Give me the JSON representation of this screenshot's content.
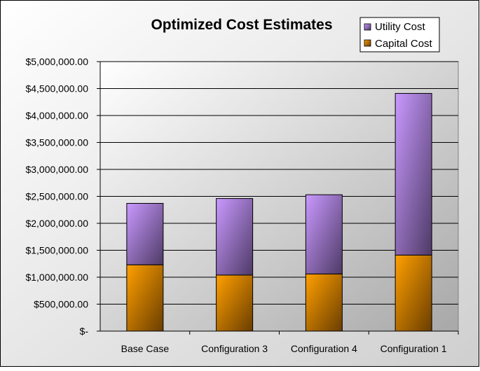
{
  "chart_data": {
    "type": "bar",
    "stacked": true,
    "title": "Optimized Cost Estimates",
    "categories": [
      "Base Case",
      "Configuration 3",
      "Configuration 4",
      "Configuration 1"
    ],
    "series": [
      {
        "name": "Capital Cost",
        "values": [
          1230000,
          1040000,
          1060000,
          1410000
        ],
        "color": "#f39a00"
      },
      {
        "name": "Utility Cost",
        "values": [
          1140000,
          1420000,
          1470000,
          3000000
        ],
        "color": "#b98ae8"
      }
    ],
    "ylim": [
      0,
      5000000
    ],
    "yticks": [
      0,
      500000,
      1000000,
      1500000,
      2000000,
      2500000,
      3000000,
      3500000,
      4000000,
      4500000,
      5000000
    ],
    "ytick_labels": [
      "$-",
      "$500,000.00",
      "$1,000,000.00",
      "$1,500,000.00",
      "$2,000,000.00",
      "$2,500,000.00",
      "$3,000,000.00",
      "$3,500,000.00",
      "$4,000,000.00",
      "$4,500,000.00",
      "$5,000,000.00"
    ],
    "legend_entries": [
      "Utility Cost",
      "Capital Cost"
    ],
    "legend_position": "top-right",
    "grid": true,
    "colors": {
      "plot_background": "#c0c0c0",
      "frame_background": "#e6e6e6",
      "gridline": "#000000"
    }
  }
}
